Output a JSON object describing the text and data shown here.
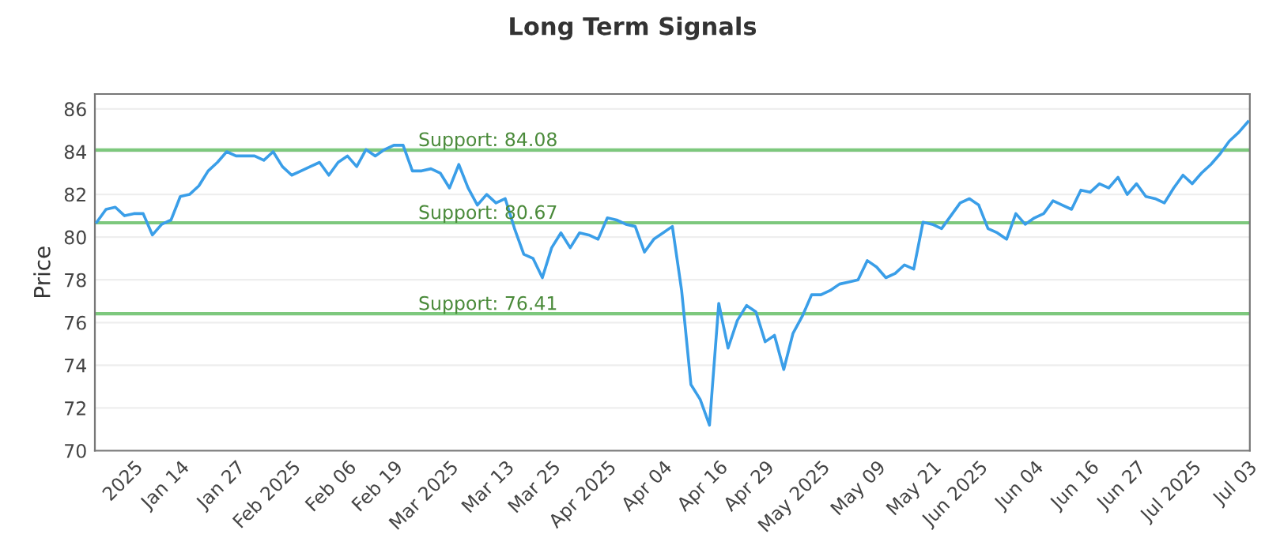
{
  "chart_data": {
    "type": "line",
    "title": "Long Term Signals",
    "ylabel": "Price",
    "categories": [
      null,
      null,
      null,
      null,
      "2025",
      null,
      null,
      null,
      null,
      "Jan 14",
      null,
      null,
      null,
      null,
      null,
      "Jan 27",
      null,
      null,
      null,
      null,
      null,
      "Feb 2025",
      null,
      null,
      null,
      null,
      null,
      "Feb 06",
      null,
      null,
      null,
      null,
      "Feb 19",
      null,
      null,
      null,
      null,
      null,
      "Mar 2025",
      null,
      null,
      null,
      null,
      null,
      "Mar 13",
      null,
      null,
      null,
      null,
      "Mar 25",
      null,
      null,
      null,
      null,
      null,
      "Apr 2025",
      null,
      null,
      null,
      null,
      null,
      "Apr 04",
      null,
      null,
      null,
      null,
      null,
      "Apr 16",
      null,
      null,
      null,
      null,
      "Apr 29",
      null,
      null,
      null,
      null,
      null,
      "May 2025",
      null,
      null,
      null,
      null,
      null,
      "May 09",
      null,
      null,
      null,
      null,
      null,
      "May 21",
      null,
      null,
      null,
      null,
      "Jun 2025",
      null,
      null,
      null,
      null,
      null,
      "Jun 04",
      null,
      null,
      null,
      null,
      null,
      "Jun 16",
      null,
      null,
      null,
      null,
      "Jun 27",
      null,
      null,
      null,
      null,
      null,
      "Jul 2025",
      null,
      null,
      null,
      null,
      null,
      "Jul 03"
    ],
    "series": [
      {
        "color": "#3a9ee8",
        "values": [
          80.7,
          81.3,
          81.4,
          81.0,
          81.1,
          81.1,
          80.1,
          80.6,
          80.8,
          81.9,
          82.0,
          82.4,
          83.1,
          83.5,
          84.0,
          83.8,
          83.8,
          83.8,
          83.6,
          84.0,
          83.3,
          82.9,
          83.1,
          83.3,
          83.5,
          82.9,
          83.5,
          83.8,
          83.3,
          84.1,
          83.8,
          84.1,
          84.3,
          84.3,
          83.1,
          83.1,
          83.2,
          83.0,
          82.3,
          83.4,
          82.3,
          81.5,
          82.0,
          81.6,
          81.8,
          80.4,
          79.2,
          79.0,
          78.1,
          79.5,
          80.2,
          79.5,
          80.2,
          80.1,
          79.9,
          80.9,
          80.8,
          80.6,
          80.5,
          79.3,
          79.9,
          80.2,
          80.5,
          77.5,
          73.1,
          72.4,
          71.2,
          76.9,
          74.8,
          76.1,
          76.8,
          76.5,
          75.1,
          75.4,
          73.8,
          75.5,
          76.3,
          77.3,
          77.3,
          77.5,
          77.8,
          77.9,
          78.0,
          78.9,
          78.6,
          78.1,
          78.3,
          78.7,
          78.5,
          80.7,
          80.6,
          80.4,
          81.0,
          81.6,
          81.8,
          81.5,
          80.4,
          80.2,
          79.9,
          81.1,
          80.6,
          80.9,
          81.1,
          81.7,
          81.5,
          81.3,
          82.2,
          82.1,
          82.5,
          82.3,
          82.8,
          82.0,
          82.5,
          81.9,
          81.8,
          81.6,
          82.3,
          82.9,
          82.5,
          83.0,
          83.4,
          83.9,
          84.5,
          84.9,
          85.4
        ]
      }
    ],
    "ylim": [
      70,
      86.7
    ],
    "yticks": [
      70,
      72,
      74,
      76,
      78,
      80,
      82,
      84,
      86
    ],
    "grid": "y",
    "marker": "none",
    "line_style": "solid",
    "ref_lines": [
      {
        "axis": "y",
        "value": 84.08,
        "label": "Support: 84.08",
        "color": "#7dc87d"
      },
      {
        "axis": "y",
        "value": 80.67,
        "label": "Support: 80.67",
        "color": "#7dc87d"
      },
      {
        "axis": "y",
        "value": 76.41,
        "label": "Support: 76.41",
        "color": "#7dc87d"
      }
    ]
  }
}
